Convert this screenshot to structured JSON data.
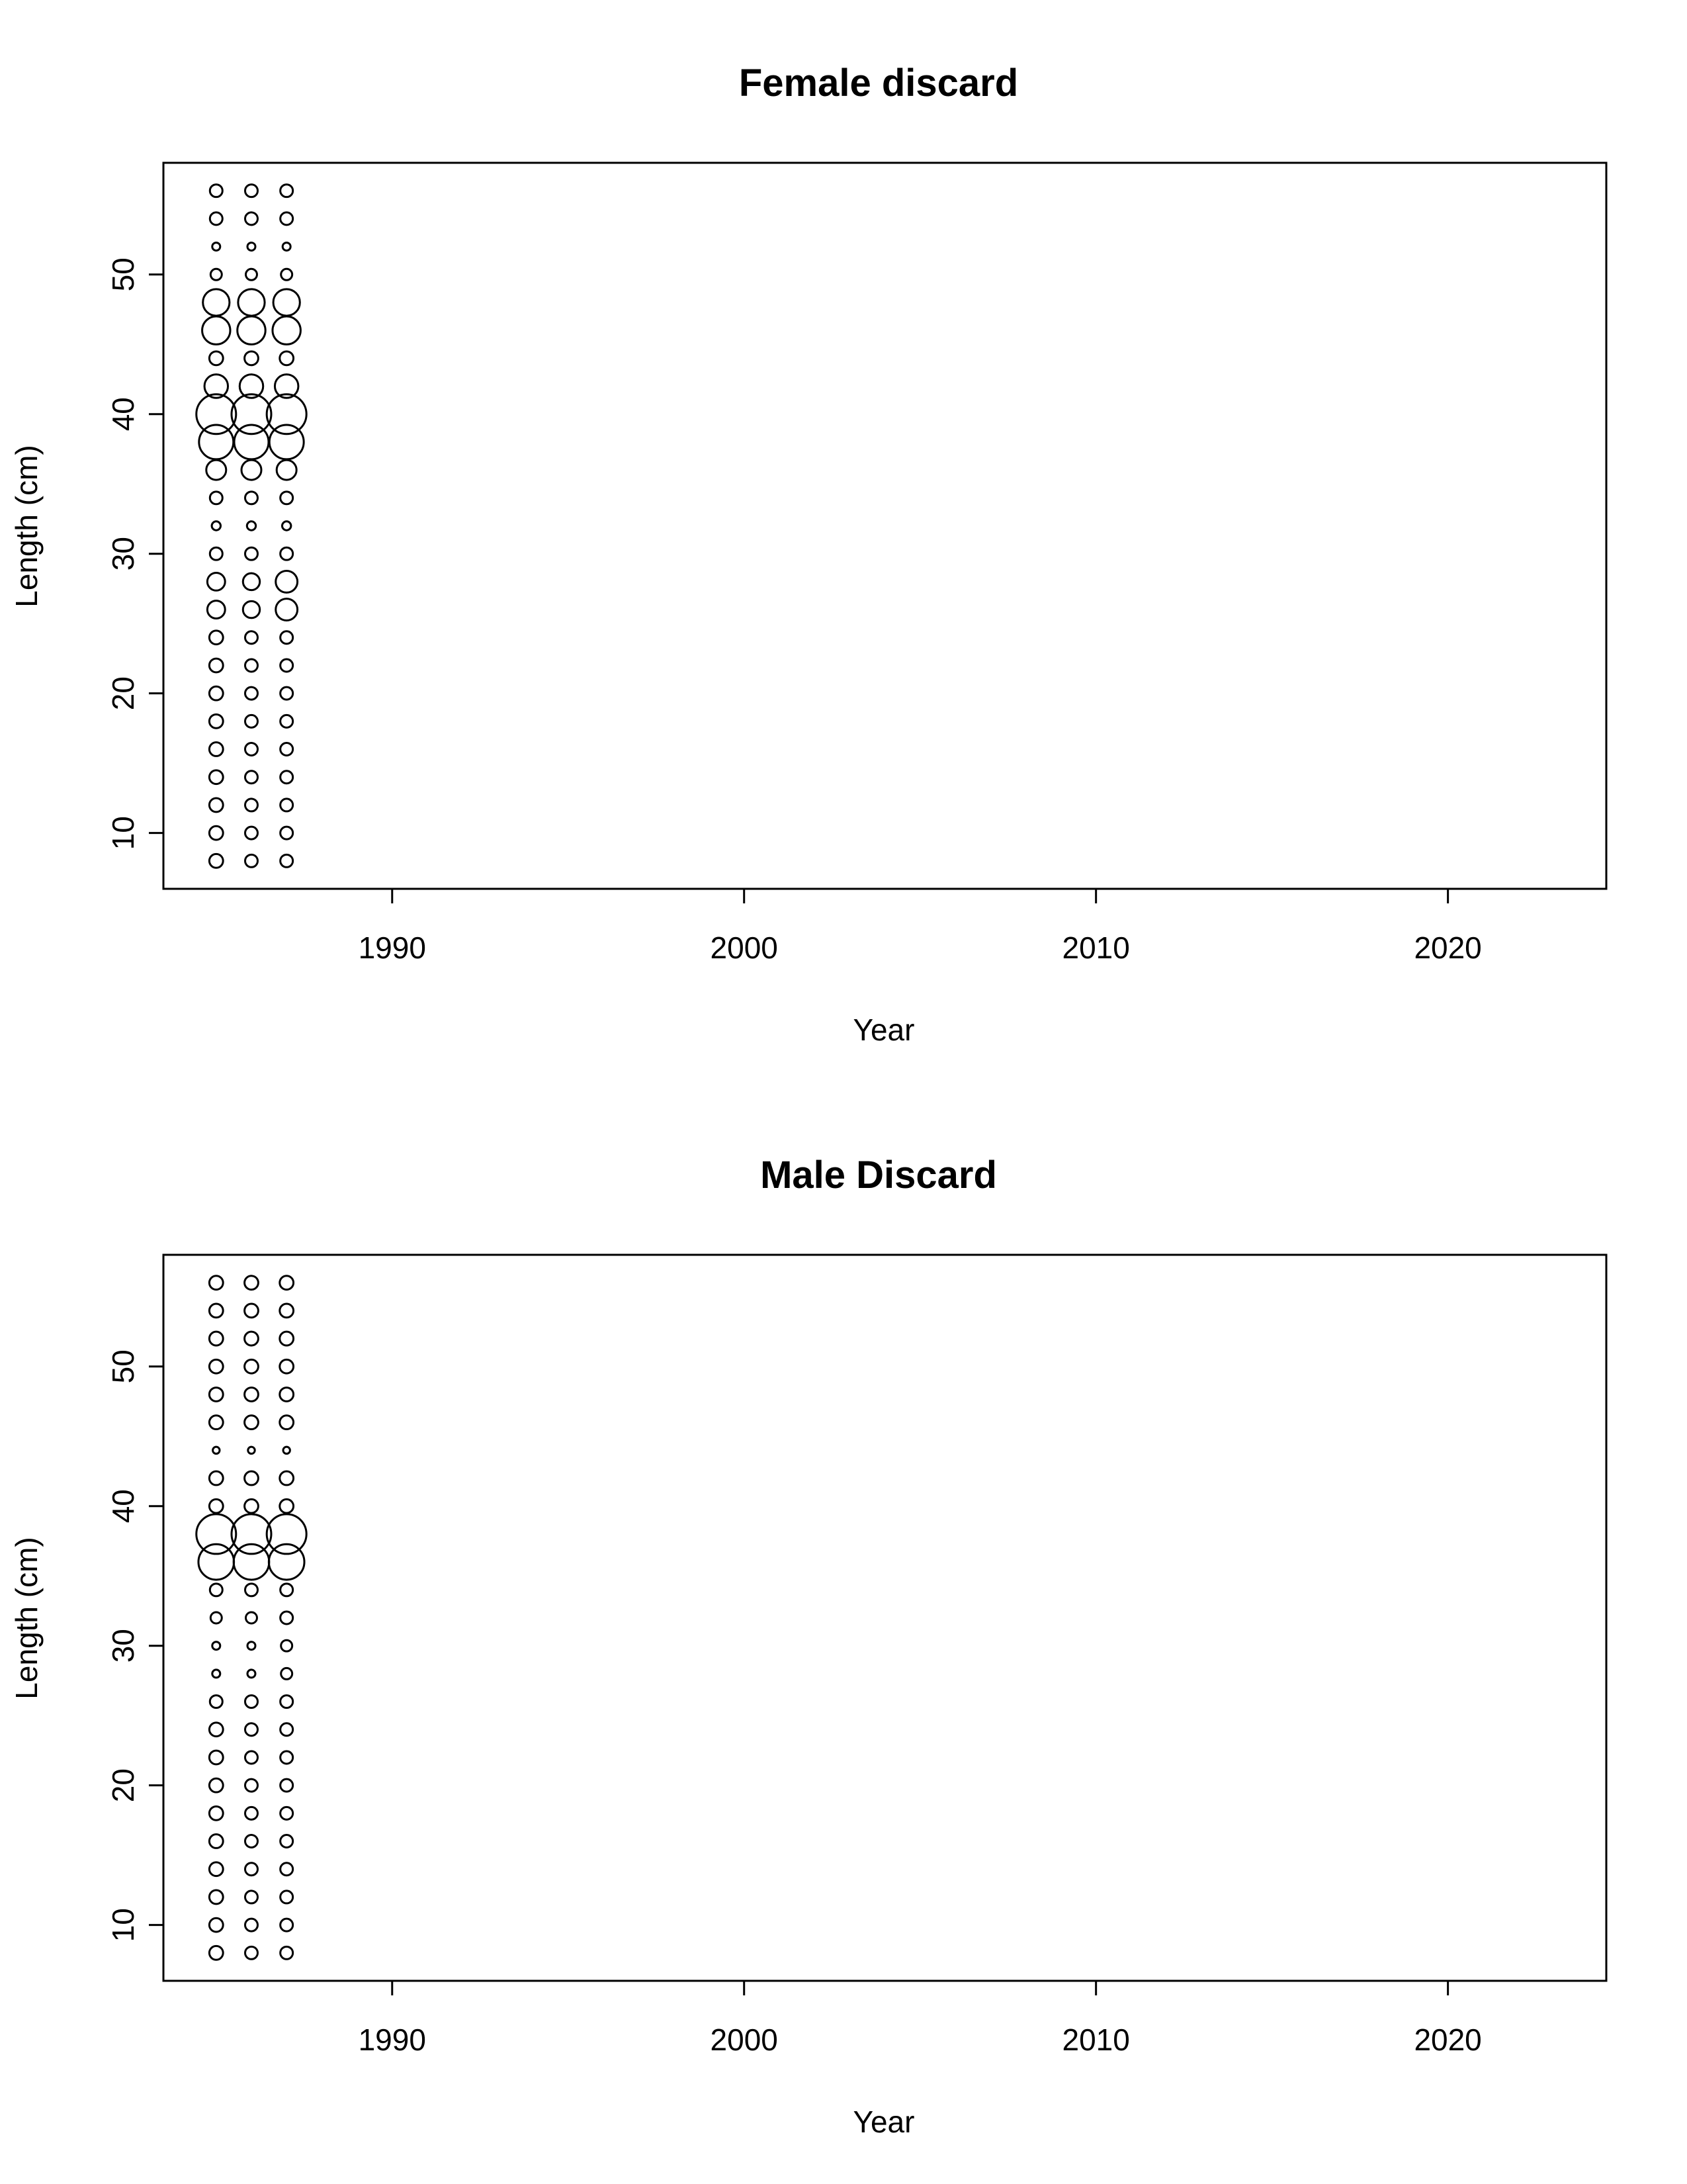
{
  "chart_data": [
    {
      "type": "scatter",
      "title": "Female discard",
      "xlabel": "Year",
      "ylabel": "Length (cm)",
      "xlim": [
        1983.5,
        2024.5
      ],
      "ylim": [
        6,
        58
      ],
      "x_ticks": [
        1990,
        2000,
        2010,
        2020
      ],
      "y_ticks": [
        10,
        20,
        30,
        40,
        50
      ],
      "grid": false,
      "legend": "none",
      "years": [
        1985,
        1986,
        1987
      ],
      "lengths": [
        8,
        10,
        12,
        14,
        16,
        18,
        20,
        22,
        24,
        26,
        28,
        30,
        32,
        34,
        36,
        38,
        40,
        42,
        44,
        46,
        48,
        50,
        52,
        54,
        56
      ],
      "relative_size": [
        [
          0.12,
          0.12,
          0.12,
          0.12,
          0.12,
          0.12,
          0.12,
          0.12,
          0.12,
          0.2,
          0.2,
          0.1,
          0.05,
          0.1,
          0.25,
          0.75,
          1.0,
          0.35,
          0.12,
          0.5,
          0.45,
          0.08,
          0.04,
          0.1,
          0.1
        ],
        [
          0.1,
          0.1,
          0.1,
          0.1,
          0.1,
          0.1,
          0.1,
          0.1,
          0.1,
          0.18,
          0.18,
          0.1,
          0.05,
          0.1,
          0.25,
          0.75,
          1.0,
          0.35,
          0.12,
          0.5,
          0.45,
          0.08,
          0.04,
          0.1,
          0.1
        ],
        [
          0.1,
          0.1,
          0.1,
          0.1,
          0.1,
          0.1,
          0.1,
          0.1,
          0.1,
          0.3,
          0.3,
          0.1,
          0.05,
          0.1,
          0.25,
          0.75,
          1.0,
          0.35,
          0.12,
          0.5,
          0.45,
          0.08,
          0.04,
          0.1,
          0.1
        ]
      ]
    },
    {
      "type": "scatter",
      "title": "Male Discard",
      "xlabel": "Year",
      "ylabel": "Length (cm)",
      "xlim": [
        1983.5,
        2024.5
      ],
      "ylim": [
        6,
        58
      ],
      "x_ticks": [
        1990,
        2000,
        2010,
        2020
      ],
      "y_ticks": [
        10,
        20,
        30,
        40,
        50
      ],
      "grid": false,
      "legend": "none",
      "years": [
        1985,
        1986,
        1987
      ],
      "lengths": [
        8,
        10,
        12,
        14,
        16,
        18,
        20,
        22,
        24,
        26,
        28,
        30,
        32,
        34,
        36,
        38,
        40,
        42,
        44,
        46,
        48,
        50,
        52,
        54,
        56
      ],
      "relative_size": [
        [
          0.12,
          0.12,
          0.12,
          0.12,
          0.12,
          0.12,
          0.12,
          0.12,
          0.12,
          0.1,
          0.04,
          0.04,
          0.08,
          0.1,
          0.8,
          1.0,
          0.12,
          0.12,
          0.03,
          0.12,
          0.12,
          0.12,
          0.12,
          0.12,
          0.12
        ],
        [
          0.1,
          0.1,
          0.1,
          0.1,
          0.1,
          0.1,
          0.1,
          0.1,
          0.1,
          0.1,
          0.04,
          0.04,
          0.08,
          0.1,
          0.8,
          1.0,
          0.12,
          0.12,
          0.03,
          0.12,
          0.12,
          0.12,
          0.12,
          0.12,
          0.12
        ],
        [
          0.1,
          0.1,
          0.1,
          0.1,
          0.1,
          0.1,
          0.1,
          0.1,
          0.1,
          0.1,
          0.08,
          0.08,
          0.1,
          0.1,
          0.8,
          1.0,
          0.12,
          0.12,
          0.03,
          0.12,
          0.12,
          0.12,
          0.12,
          0.12,
          0.12
        ]
      ]
    }
  ]
}
